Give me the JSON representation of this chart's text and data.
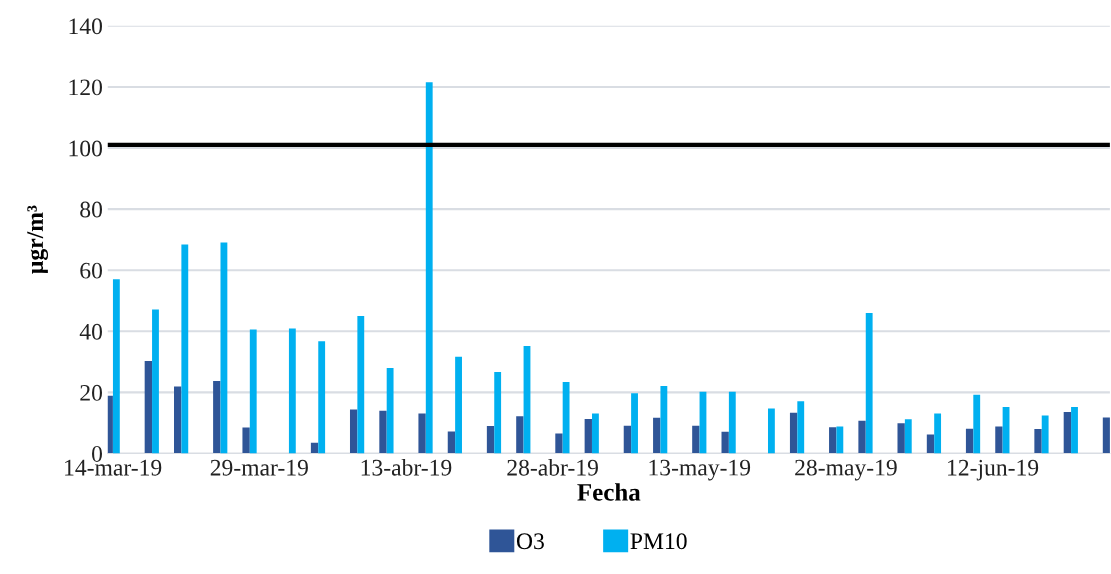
{
  "chart_data": {
    "type": "bar",
    "xlabel": "Fecha",
    "ylabel": "µgr/m³",
    "x": [
      "2019-03-14",
      "2019-03-18",
      "2019-03-21",
      "2019-03-25",
      "2019-03-28",
      "2019-04-01",
      "2019-04-04",
      "2019-04-08",
      "2019-04-11",
      "2019-04-15",
      "2019-04-18",
      "2019-04-22",
      "2019-04-25",
      "2019-04-29",
      "2019-05-02",
      "2019-05-06",
      "2019-05-09",
      "2019-05-13",
      "2019-05-16",
      "2019-05-20",
      "2019-05-23",
      "2019-05-27",
      "2019-05-30",
      "2019-06-03",
      "2019-06-06",
      "2019-06-10",
      "2019-06-13",
      "2019-06-17",
      "2019-06-20",
      "2019-06-24"
    ],
    "series": [
      {
        "name": "O3",
        "color": "#2f5597",
        "values": [
          18.9,
          30.3,
          21.9,
          23.7,
          8.5,
          null,
          3.5,
          14.4,
          14.0,
          13.1,
          7.2,
          9.0,
          12.2,
          6.5,
          11.3,
          9.1,
          11.7,
          9.1,
          7.1,
          null,
          13.3,
          8.6,
          10.7,
          9.9,
          6.2,
          8.1,
          8.8,
          8.0,
          13.6,
          11.8
        ]
      },
      {
        "name": "PM10",
        "color": "#00b0f0",
        "values": [
          57.0,
          47.1,
          68.4,
          69.1,
          40.6,
          40.9,
          36.7,
          45.0,
          28.0,
          121.5,
          31.7,
          26.7,
          35.2,
          23.4,
          13.1,
          19.7,
          22.1,
          20.2,
          20.2,
          14.7,
          17.1,
          8.8,
          46.0,
          11.2,
          13.1,
          19.2,
          15.2,
          12.4,
          15.2,
          null
        ]
      }
    ],
    "xlim": [
      "2019-03-13T12:00",
      "2019-06-24"
    ],
    "xticks": [
      {
        "value": "2019-03-14",
        "label": "14-mar-19"
      },
      {
        "value": "2019-03-29",
        "label": "29-mar-19"
      },
      {
        "value": "2019-04-13",
        "label": "13-abr-19"
      },
      {
        "value": "2019-04-28",
        "label": "28-abr-19"
      },
      {
        "value": "2019-05-13",
        "label": "13-may-19"
      },
      {
        "value": "2019-05-28",
        "label": "28-may-19"
      },
      {
        "value": "2019-06-12",
        "label": "12-jun-19"
      }
    ],
    "ylim": [
      0,
      140
    ],
    "yticks": [
      0,
      20,
      40,
      60,
      80,
      100,
      120,
      140
    ],
    "ref_lines": [
      {
        "axis": "y",
        "value": 101,
        "color": "#000000"
      }
    ],
    "grid": "y",
    "legend": "bottom"
  }
}
